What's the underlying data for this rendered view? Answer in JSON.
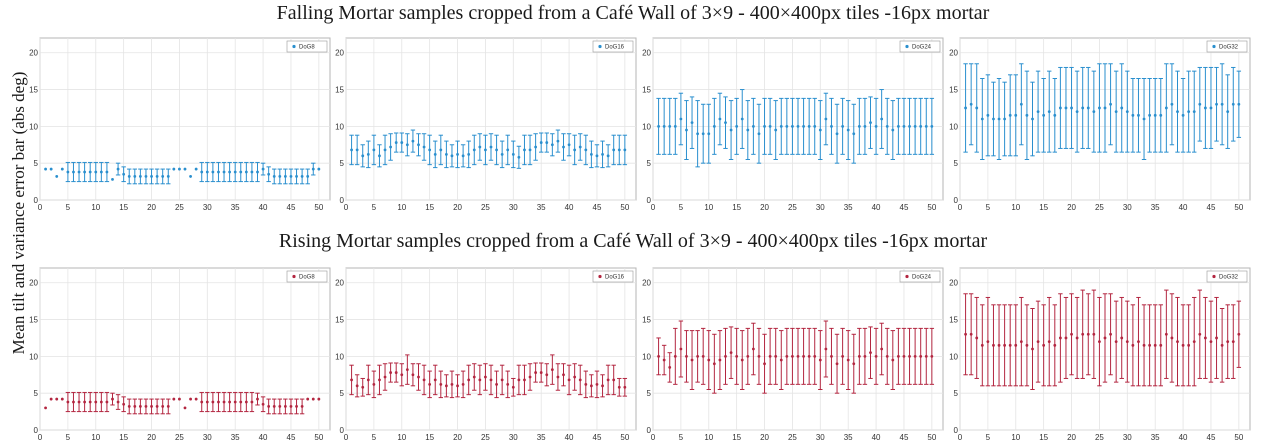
{
  "titles": {
    "top": "Falling Mortar samples cropped from a Café Wall of 3×9 - 400×400px tiles -16px mortar",
    "bottom": "Rising Mortar samples cropped from a Café Wall of 3×9 - 400×400px tiles -16px mortar"
  },
  "ylabel": "Mean tilt and variance error bar (abs deg)",
  "colors": {
    "falling": "#2a8fce",
    "rising": "#b32640"
  },
  "chart_data": [
    {
      "type": "scatter",
      "row": "falling",
      "legend": "DoG8",
      "xlim": [
        0,
        52
      ],
      "ylim": [
        0,
        22
      ],
      "xticks": [
        0,
        5,
        10,
        15,
        20,
        25,
        30,
        35,
        40,
        45,
        50
      ],
      "yticks": [
        0,
        5,
        10,
        15,
        20
      ],
      "grid": true,
      "legend_position": "top-right",
      "x": [
        1,
        2,
        3,
        4,
        5,
        6,
        7,
        8,
        9,
        10,
        11,
        12,
        13,
        14,
        15,
        16,
        17,
        18,
        19,
        20,
        21,
        22,
        23,
        24,
        25,
        26,
        27,
        28,
        29,
        30,
        31,
        32,
        33,
        34,
        35,
        36,
        37,
        38,
        39,
        40,
        41,
        42,
        43,
        44,
        45,
        46,
        47,
        48,
        49,
        50
      ],
      "mean": [
        4.2,
        4.2,
        3.2,
        4.2,
        3.8,
        3.8,
        3.8,
        3.8,
        3.8,
        3.8,
        3.8,
        3.8,
        2.8,
        4.2,
        3.5,
        3.2,
        3.2,
        3.2,
        3.2,
        3.2,
        3.2,
        3.2,
        3.2,
        4.2,
        4.2,
        4.2,
        3.2,
        4.2,
        3.8,
        3.8,
        3.8,
        3.8,
        3.8,
        3.8,
        3.8,
        3.8,
        3.8,
        3.8,
        3.8,
        4.2,
        3.5,
        3.2,
        3.2,
        3.2,
        3.2,
        3.2,
        3.2,
        3.2,
        4.2,
        4.2
      ],
      "err": [
        0,
        0,
        0,
        0,
        1.3,
        1.3,
        1.3,
        1.3,
        1.3,
        1.3,
        1.3,
        1.3,
        0,
        0.8,
        1.0,
        1.0,
        1.0,
        1.0,
        1.0,
        1.0,
        1.0,
        1.0,
        1.0,
        0,
        0,
        0,
        0,
        0,
        1.3,
        1.3,
        1.3,
        1.3,
        1.3,
        1.3,
        1.3,
        1.3,
        1.3,
        1.3,
        1.3,
        0.8,
        1.0,
        1.0,
        1.0,
        1.0,
        1.0,
        1.0,
        1.0,
        1.0,
        0.8,
        0
      ]
    },
    {
      "type": "scatter",
      "row": "falling",
      "legend": "DoG16",
      "xlim": [
        0,
        52
      ],
      "ylim": [
        0,
        22
      ],
      "xticks": [
        0,
        5,
        10,
        15,
        20,
        25,
        30,
        35,
        40,
        45,
        50
      ],
      "yticks": [
        0,
        5,
        10,
        15,
        20
      ],
      "grid": true,
      "legend_position": "top-right",
      "x": [
        1,
        2,
        3,
        4,
        5,
        6,
        7,
        8,
        9,
        10,
        11,
        12,
        13,
        14,
        15,
        16,
        17,
        18,
        19,
        20,
        21,
        22,
        23,
        24,
        25,
        26,
        27,
        28,
        29,
        30,
        31,
        32,
        33,
        34,
        35,
        36,
        37,
        38,
        39,
        40,
        41,
        42,
        43,
        44,
        45,
        46,
        47,
        48,
        49,
        50
      ],
      "mean": [
        6.8,
        6.8,
        6.0,
        6.2,
        6.8,
        6.0,
        6.8,
        7.2,
        7.8,
        7.8,
        7.5,
        8.0,
        7.5,
        7.2,
        6.8,
        6.2,
        6.8,
        6.2,
        6.0,
        6.2,
        6.0,
        6.2,
        6.8,
        7.2,
        6.8,
        7.2,
        6.8,
        6.2,
        6.8,
        6.2,
        5.8,
        6.8,
        6.8,
        7.2,
        7.8,
        7.8,
        7.5,
        8.0,
        7.2,
        7.5,
        6.8,
        7.2,
        6.8,
        6.2,
        6.0,
        6.2,
        6.0,
        6.8,
        6.8,
        6.8
      ],
      "err": [
        2.0,
        2.0,
        1.5,
        1.8,
        2.0,
        1.5,
        2.0,
        1.8,
        1.3,
        1.3,
        1.5,
        1.5,
        1.5,
        1.8,
        2.0,
        1.8,
        2.0,
        1.8,
        1.5,
        1.8,
        1.5,
        1.8,
        2.0,
        1.8,
        2.0,
        1.8,
        2.0,
        1.8,
        2.0,
        1.8,
        1.5,
        2.0,
        2.0,
        1.8,
        1.3,
        1.3,
        1.5,
        1.5,
        1.8,
        1.5,
        2.0,
        1.8,
        2.0,
        1.8,
        1.5,
        1.8,
        1.5,
        2.0,
        2.0,
        2.0
      ]
    },
    {
      "type": "scatter",
      "row": "falling",
      "legend": "DoG24",
      "xlim": [
        0,
        52
      ],
      "ylim": [
        0,
        22
      ],
      "xticks": [
        0,
        5,
        10,
        15,
        20,
        25,
        30,
        35,
        40,
        45,
        50
      ],
      "yticks": [
        0,
        5,
        10,
        15,
        20
      ],
      "grid": true,
      "legend_position": "top-right",
      "x": [
        1,
        2,
        3,
        4,
        5,
        6,
        7,
        8,
        9,
        10,
        11,
        12,
        13,
        14,
        15,
        16,
        17,
        18,
        19,
        20,
        21,
        22,
        23,
        24,
        25,
        26,
        27,
        28,
        29,
        30,
        31,
        32,
        33,
        34,
        35,
        36,
        37,
        38,
        39,
        40,
        41,
        42,
        43,
        44,
        45,
        46,
        47,
        48,
        49,
        50
      ],
      "mean": [
        10,
        10,
        10,
        10,
        11,
        9.5,
        10.5,
        9,
        9,
        9,
        10,
        11,
        10.5,
        9.5,
        10,
        11,
        9.5,
        10,
        9,
        10,
        10,
        9.5,
        10,
        10,
        10,
        10,
        10,
        10,
        10,
        9.5,
        11,
        10,
        9,
        10,
        9.5,
        9,
        10,
        10,
        10.5,
        10,
        11,
        10,
        9.5,
        10,
        10,
        10,
        10,
        10,
        10,
        10
      ],
      "err": [
        3.8,
        3.8,
        3.8,
        3.8,
        3.5,
        4.0,
        3.5,
        4.5,
        4.0,
        4.0,
        3.8,
        3.5,
        3.5,
        4.0,
        3.8,
        4.0,
        4.0,
        3.8,
        4.0,
        3.8,
        3.8,
        4.0,
        3.8,
        3.8,
        3.8,
        3.8,
        3.8,
        3.8,
        3.8,
        4.0,
        3.5,
        3.8,
        4.0,
        3.8,
        4.0,
        4.0,
        3.8,
        3.8,
        3.5,
        3.8,
        4.0,
        3.8,
        4.0,
        3.8,
        3.8,
        3.8,
        3.8,
        3.8,
        3.8,
        3.8
      ]
    },
    {
      "type": "scatter",
      "row": "falling",
      "legend": "DoG32",
      "xlim": [
        0,
        52
      ],
      "ylim": [
        0,
        22
      ],
      "xticks": [
        0,
        5,
        10,
        15,
        20,
        25,
        30,
        35,
        40,
        45,
        50
      ],
      "yticks": [
        0,
        5,
        10,
        15,
        20
      ],
      "grid": true,
      "legend_position": "top-right",
      "x": [
        1,
        2,
        3,
        4,
        5,
        6,
        7,
        8,
        9,
        10,
        11,
        12,
        13,
        14,
        15,
        16,
        17,
        18,
        19,
        20,
        21,
        22,
        23,
        24,
        25,
        26,
        27,
        28,
        29,
        30,
        31,
        32,
        33,
        34,
        35,
        36,
        37,
        38,
        39,
        40,
        41,
        42,
        43,
        44,
        45,
        46,
        47,
        48,
        49,
        50
      ],
      "mean": [
        12.5,
        13,
        12.5,
        11,
        11.5,
        11,
        11,
        11,
        11.5,
        11.5,
        13,
        11.5,
        11,
        12,
        11.5,
        12,
        11.5,
        12.5,
        12.5,
        12.5,
        12,
        12.5,
        12.5,
        12,
        12.5,
        12.5,
        13,
        12,
        12.5,
        12,
        11.5,
        11.5,
        11,
        11.5,
        11.5,
        11.5,
        12.5,
        13,
        12,
        11.5,
        12,
        12,
        13,
        12.5,
        12.5,
        13,
        13,
        12,
        13,
        13
      ],
      "err": [
        6,
        5.5,
        6,
        5.5,
        5.5,
        5,
        5.5,
        5,
        5.5,
        5.5,
        5.5,
        6,
        5,
        5.5,
        5,
        5.5,
        5,
        5.5,
        5.5,
        5.5,
        5.5,
        5.5,
        5.5,
        5.5,
        6,
        6,
        5.5,
        5.5,
        6,
        5.5,
        5,
        5,
        5.5,
        5,
        5,
        5,
        6,
        5.5,
        5.5,
        5,
        5.5,
        5.5,
        5,
        5.5,
        5.5,
        5,
        5.5,
        5,
        5,
        4.5
      ]
    },
    {
      "type": "scatter",
      "row": "rising",
      "legend": "DoG8",
      "xlim": [
        0,
        52
      ],
      "ylim": [
        0,
        22
      ],
      "xticks": [
        0,
        5,
        10,
        15,
        20,
        25,
        30,
        35,
        40,
        45,
        50
      ],
      "yticks": [
        0,
        5,
        10,
        15,
        20
      ],
      "grid": true,
      "legend_position": "top-right",
      "x": [
        1,
        2,
        3,
        4,
        5,
        6,
        7,
        8,
        9,
        10,
        11,
        12,
        13,
        14,
        15,
        16,
        17,
        18,
        19,
        20,
        21,
        22,
        23,
        24,
        25,
        26,
        27,
        28,
        29,
        30,
        31,
        32,
        33,
        34,
        35,
        36,
        37,
        38,
        39,
        40,
        41,
        42,
        43,
        44,
        45,
        46,
        47,
        48,
        49,
        50
      ],
      "mean": [
        3.0,
        4.2,
        4.2,
        4.2,
        3.8,
        3.8,
        3.8,
        3.8,
        3.8,
        3.8,
        3.8,
        3.8,
        4.2,
        3.8,
        3.5,
        3.2,
        3.2,
        3.2,
        3.2,
        3.2,
        3.2,
        3.2,
        3.2,
        4.2,
        4.2,
        3.0,
        4.2,
        4.2,
        3.8,
        3.8,
        3.8,
        3.8,
        3.8,
        3.8,
        3.8,
        3.8,
        3.8,
        3.8,
        4.2,
        3.5,
        3.2,
        3.2,
        3.2,
        3.2,
        3.2,
        3.2,
        3.2,
        4.2,
        4.2,
        4.2
      ],
      "err": [
        0,
        0,
        0,
        0,
        1.3,
        1.3,
        1.3,
        1.3,
        1.3,
        1.3,
        1.3,
        1.3,
        0.8,
        1.0,
        1.0,
        1.0,
        1.0,
        1.0,
        1.0,
        1.0,
        1.0,
        1.0,
        1.0,
        0,
        0,
        0,
        0,
        0,
        1.3,
        1.3,
        1.3,
        1.3,
        1.3,
        1.3,
        1.3,
        1.3,
        1.3,
        1.3,
        0.8,
        1.0,
        1.0,
        1.0,
        1.0,
        1.0,
        1.0,
        1.0,
        1.0,
        0,
        0,
        0
      ]
    },
    {
      "type": "scatter",
      "row": "rising",
      "legend": "DoG16",
      "xlim": [
        0,
        52
      ],
      "ylim": [
        0,
        22
      ],
      "xticks": [
        0,
        5,
        10,
        15,
        20,
        25,
        30,
        35,
        40,
        45,
        50
      ],
      "yticks": [
        0,
        5,
        10,
        15,
        20
      ],
      "grid": true,
      "legend_position": "top-right",
      "x": [
        1,
        2,
        3,
        4,
        5,
        6,
        7,
        8,
        9,
        10,
        11,
        12,
        13,
        14,
        15,
        16,
        17,
        18,
        19,
        20,
        21,
        22,
        23,
        24,
        25,
        26,
        27,
        28,
        29,
        30,
        31,
        32,
        33,
        34,
        35,
        36,
        37,
        38,
        39,
        40,
        41,
        42,
        43,
        44,
        45,
        46,
        47,
        48,
        49,
        50
      ],
      "mean": [
        6.8,
        6.0,
        5.8,
        6.8,
        6.2,
        6.8,
        7.2,
        7.8,
        7.8,
        7.5,
        8.2,
        7.5,
        7.2,
        6.8,
        6.2,
        6.8,
        6.2,
        6.0,
        6.2,
        6.0,
        6.2,
        6.8,
        7.2,
        6.8,
        7.2,
        6.8,
        6.2,
        6.8,
        6.2,
        5.8,
        6.8,
        6.8,
        7.2,
        7.8,
        7.8,
        7.5,
        8.2,
        7.2,
        7.5,
        6.8,
        7.2,
        6.8,
        6.2,
        6.0,
        6.2,
        6.0,
        6.8,
        6.8,
        5.8,
        5.8
      ],
      "err": [
        2.0,
        1.5,
        1.2,
        2.0,
        1.8,
        2.0,
        1.8,
        1.3,
        1.3,
        1.5,
        2.0,
        1.5,
        1.8,
        2.0,
        1.8,
        2.0,
        1.8,
        1.5,
        1.8,
        1.5,
        1.8,
        2.0,
        1.8,
        2.0,
        1.8,
        2.0,
        1.8,
        2.0,
        1.8,
        1.2,
        2.0,
        2.0,
        1.8,
        1.3,
        1.3,
        1.5,
        2.0,
        1.8,
        1.5,
        2.0,
        1.8,
        2.0,
        1.8,
        1.5,
        1.8,
        1.5,
        2.0,
        2.0,
        1.2,
        1.2
      ]
    },
    {
      "type": "scatter",
      "row": "rising",
      "legend": "DoG24",
      "xlim": [
        0,
        52
      ],
      "ylim": [
        0,
        22
      ],
      "xticks": [
        0,
        5,
        10,
        15,
        20,
        25,
        30,
        35,
        40,
        45,
        50
      ],
      "yticks": [
        0,
        5,
        10,
        15,
        20
      ],
      "grid": true,
      "legend_position": "top-right",
      "x": [
        1,
        2,
        3,
        4,
        5,
        6,
        7,
        8,
        9,
        10,
        11,
        12,
        13,
        14,
        15,
        16,
        17,
        18,
        19,
        20,
        21,
        22,
        23,
        24,
        25,
        26,
        27,
        28,
        29,
        30,
        31,
        32,
        33,
        34,
        35,
        36,
        37,
        38,
        39,
        40,
        41,
        42,
        43,
        44,
        45,
        46,
        47,
        48,
        49,
        50
      ],
      "mean": [
        10,
        9.5,
        8.5,
        10,
        11,
        10,
        9.5,
        10,
        10,
        9.5,
        9,
        9.5,
        10,
        10.5,
        10,
        9.5,
        10,
        11,
        10,
        9,
        10,
        10,
        9.5,
        10,
        10,
        10,
        10,
        10,
        10,
        9.5,
        11,
        10,
        9,
        10,
        9.5,
        9,
        10,
        10,
        10.5,
        10,
        11,
        10,
        9.5,
        10,
        10,
        10,
        10,
        10,
        10,
        10
      ],
      "err": [
        2.5,
        2.0,
        2.0,
        3.8,
        3.8,
        3.5,
        4.0,
        3.5,
        3.8,
        4.0,
        4.0,
        4.0,
        3.8,
        3.5,
        3.8,
        4.0,
        3.8,
        3.5,
        3.8,
        4.0,
        3.8,
        3.8,
        4.0,
        3.8,
        3.8,
        3.8,
        3.8,
        3.8,
        3.8,
        4.0,
        3.8,
        3.8,
        4.0,
        3.8,
        4.0,
        4.0,
        3.8,
        3.8,
        3.5,
        3.8,
        3.5,
        3.8,
        4.0,
        3.8,
        3.8,
        3.8,
        3.8,
        3.8,
        3.8,
        3.8
      ]
    },
    {
      "type": "scatter",
      "row": "rising",
      "legend": "DoG32",
      "xlim": [
        0,
        52
      ],
      "ylim": [
        0,
        22
      ],
      "xticks": [
        0,
        5,
        10,
        15,
        20,
        25,
        30,
        35,
        40,
        45,
        50
      ],
      "yticks": [
        0,
        5,
        10,
        15,
        20
      ],
      "grid": true,
      "legend_position": "top-right",
      "x": [
        1,
        2,
        3,
        4,
        5,
        6,
        7,
        8,
        9,
        10,
        11,
        12,
        13,
        14,
        15,
        16,
        17,
        18,
        19,
        20,
        21,
        22,
        23,
        24,
        25,
        26,
        27,
        28,
        29,
        30,
        31,
        32,
        33,
        34,
        35,
        36,
        37,
        38,
        39,
        40,
        41,
        42,
        43,
        44,
        45,
        46,
        47,
        48,
        49,
        50
      ],
      "mean": [
        13,
        13,
        12.5,
        11.5,
        12,
        11.5,
        11.5,
        11.5,
        11.5,
        11.5,
        12,
        11.5,
        11,
        12,
        11.5,
        12,
        11.5,
        12.5,
        12.5,
        13,
        12.5,
        13,
        13,
        13,
        12,
        12.5,
        13,
        12,
        12.5,
        12,
        11.5,
        12,
        11.5,
        11.5,
        11.5,
        11.5,
        13,
        12.5,
        12,
        11.5,
        11.5,
        12,
        13,
        12.5,
        12,
        12.5,
        11.5,
        12,
        12,
        13
      ],
      "err": [
        5.5,
        5.5,
        5.5,
        5.5,
        6,
        5.5,
        5.5,
        5.5,
        5.5,
        5.5,
        6,
        5.5,
        5.5,
        5.5,
        5.5,
        6,
        5.5,
        6,
        5.5,
        5.5,
        5.5,
        6,
        5.5,
        6,
        6,
        6,
        5.5,
        5.5,
        5.5,
        5.5,
        5.5,
        6,
        5.5,
        5.5,
        5.5,
        5.5,
        6,
        6,
        6,
        5.5,
        5.5,
        6,
        6,
        5.5,
        5.5,
        5.5,
        5,
        5,
        5,
        4.5
      ]
    }
  ]
}
